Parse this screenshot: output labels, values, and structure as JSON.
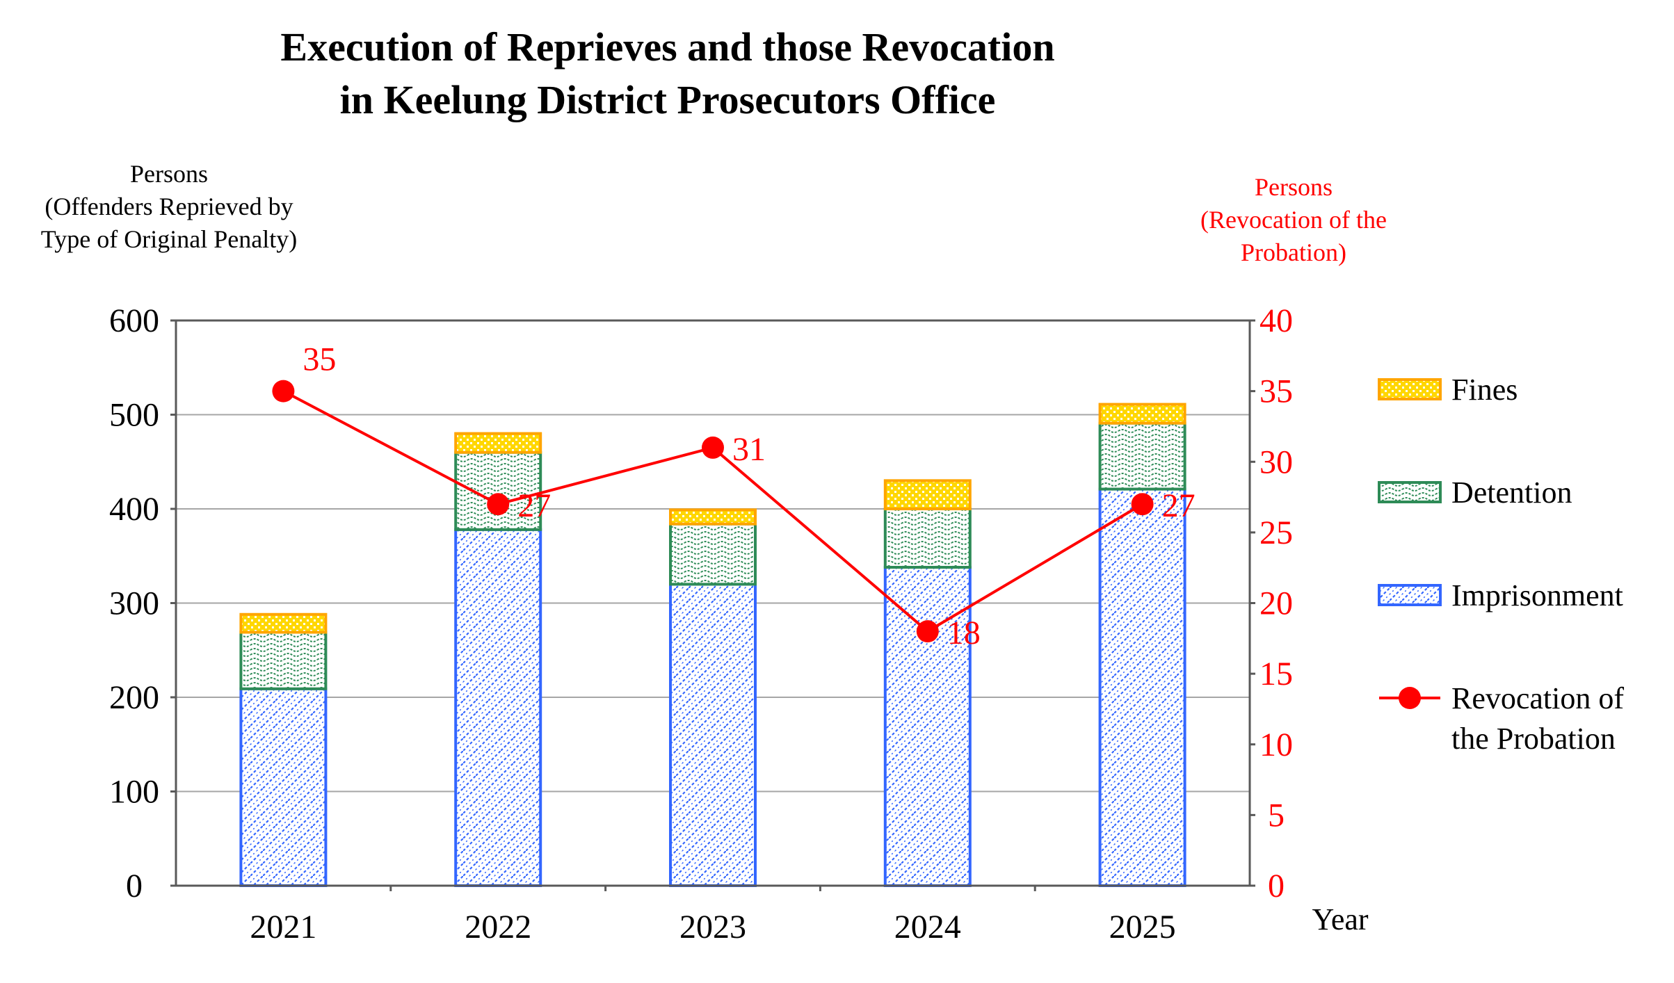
{
  "chart_data": {
    "type": "bar",
    "stacked": true,
    "title_lines": [
      "Execution of Reprieves and those Revocation",
      "in Keelung District Prosecutors Office"
    ],
    "y_left_label_lines": [
      "Persons",
      "(Offenders Reprieved by",
      "Type of Original Penalty)"
    ],
    "y_right_label_lines": [
      "Persons",
      "(Revocation of the",
      "Probation)"
    ],
    "xlabel": "Year",
    "categories": [
      "2021",
      "2022",
      "2023",
      "2024",
      "2025"
    ],
    "ylim_left": [
      0,
      600
    ],
    "yticks_left": [
      "0",
      "100",
      "200",
      "300",
      "400",
      "500",
      "600"
    ],
    "ylim_right": [
      0,
      40
    ],
    "yticks_right": [
      "0",
      "5",
      "10",
      "15",
      "20",
      "25",
      "30",
      "35",
      "40"
    ],
    "series": [
      {
        "name": "Imprisonment",
        "axis": "left",
        "kind": "bar",
        "values": [
          209,
          378,
          320,
          338,
          421
        ],
        "color": "#3366ff"
      },
      {
        "name": "Detention",
        "axis": "left",
        "kind": "bar",
        "values": [
          60,
          82,
          64,
          62,
          70
        ],
        "color": "#2e8b57"
      },
      {
        "name": "Fines",
        "axis": "left",
        "kind": "bar",
        "values": [
          19,
          20,
          15,
          30,
          20
        ],
        "color": "#ffa500"
      },
      {
        "name": "Revocation of the Probation",
        "axis": "right",
        "kind": "line",
        "values": [
          35,
          27,
          31,
          18,
          27
        ],
        "color": "#ff0000"
      }
    ],
    "data_labels": [
      "35",
      "27",
      "31",
      "18",
      "27"
    ],
    "legend": [
      {
        "lines": [
          "Fines"
        ],
        "key": "fines"
      },
      {
        "lines": [
          "Detention"
        ],
        "key": "detention"
      },
      {
        "lines": [
          "Imprisonment"
        ],
        "key": "imprisonment"
      },
      {
        "lines": [
          "Revocation of",
          "the Probation"
        ],
        "key": "revocation"
      }
    ],
    "grid": true,
    "legend_position": "right"
  }
}
